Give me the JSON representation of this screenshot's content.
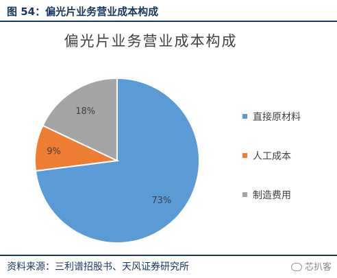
{
  "figure": {
    "title": "图 54：偏光片业务营业成本构成",
    "source": "资料来源：三利谱招股书、天风证券研究所",
    "watermark": "芯扒客",
    "watermark_icon": "wechat-icon"
  },
  "chart_data": {
    "type": "pie",
    "title": "偏光片业务营业成本构成",
    "labels": [
      "直接原材料",
      "人工成本",
      "制造费用"
    ],
    "values": [
      73,
      9,
      18
    ],
    "data_labels": [
      "73%",
      "9%",
      "18%"
    ],
    "colors": [
      "#5b9bd5",
      "#ed7d31",
      "#a5a5a5"
    ],
    "start_angle_deg": 0,
    "direction": "clockwise",
    "legend_position": "right"
  }
}
